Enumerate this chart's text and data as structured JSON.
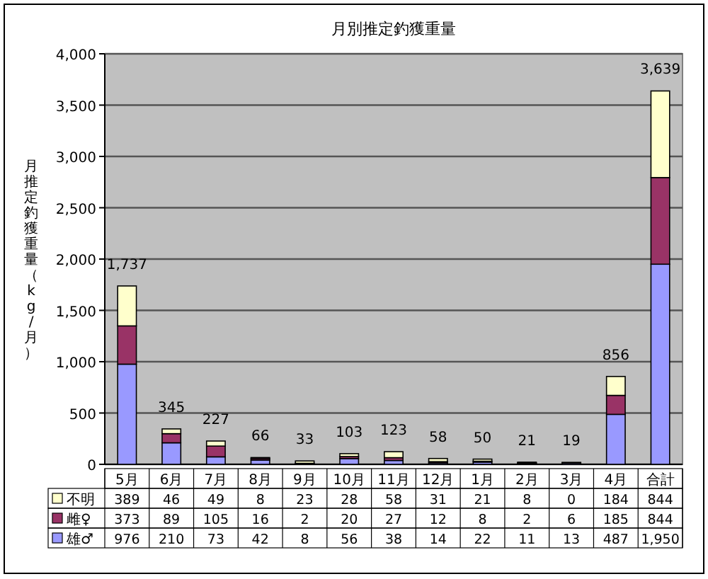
{
  "chart_data": {
    "type": "bar",
    "stacked": true,
    "title": "月別推定釣獲重量",
    "ylabel": "月推定釣獲重量（kg/月）",
    "categories": [
      "5月",
      "6月",
      "7月",
      "8月",
      "9月",
      "10月",
      "11月",
      "12月",
      "1月",
      "2月",
      "3月",
      "4月",
      "合計"
    ],
    "series": [
      {
        "name": "雄♂",
        "color": "#9999ff",
        "values": [
          976,
          210,
          73,
          42,
          8,
          56,
          38,
          14,
          22,
          11,
          13,
          487,
          1950
        ],
        "value_labels": [
          "976",
          "210",
          "73",
          "42",
          "8",
          "56",
          "38",
          "14",
          "22",
          "11",
          "13",
          "487",
          "1,950"
        ]
      },
      {
        "name": "雌♀",
        "color": "#993366",
        "values": [
          373,
          89,
          105,
          16,
          2,
          20,
          27,
          12,
          8,
          2,
          6,
          185,
          844
        ],
        "value_labels": [
          "373",
          "89",
          "105",
          "16",
          "2",
          "20",
          "27",
          "12",
          "8",
          "2",
          "6",
          "185",
          "844"
        ]
      },
      {
        "name": "不明",
        "color": "#ffffcc",
        "values": [
          389,
          46,
          49,
          8,
          23,
          28,
          58,
          31,
          21,
          8,
          0,
          184,
          844
        ],
        "value_labels": [
          "389",
          "46",
          "49",
          "8",
          "23",
          "28",
          "58",
          "31",
          "21",
          "8",
          "0",
          "184",
          "844"
        ]
      }
    ],
    "totals": [
      "1,737",
      "345",
      "227",
      "66",
      "33",
      "103",
      "123",
      "58",
      "50",
      "21",
      "19",
      "856",
      "3,639"
    ],
    "ylim": [
      0,
      4000
    ],
    "yticks": [
      0,
      {
        "value": 500,
        "label": "500"
      },
      {
        "value": 1000,
        "label": "1,000"
      },
      {
        "value": 1500,
        "label": "1,500"
      },
      {
        "value": 2000,
        "label": "2,000"
      },
      {
        "value": 2500,
        "label": "2,500"
      },
      {
        "value": 3000,
        "label": "3,000"
      },
      {
        "value": 3500,
        "label": "3,500"
      },
      {
        "value": 4000,
        "label": "4,000"
      }
    ],
    "grid": "y",
    "legend": "bottom"
  }
}
